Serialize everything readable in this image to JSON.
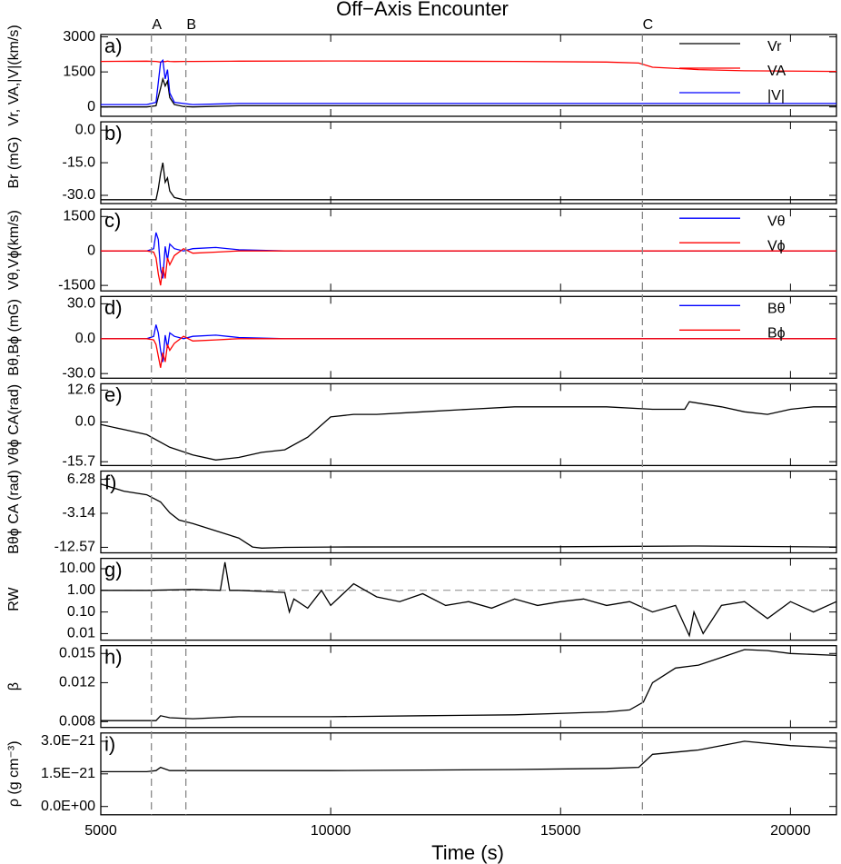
{
  "figure": {
    "title": "Off−Axis Encounter",
    "xlabel": "Time (s)",
    "xlim": [
      5000,
      21000
    ],
    "xticks": [
      5000,
      10000,
      15000,
      20000
    ],
    "markers": [
      {
        "label": "A",
        "x": 6100
      },
      {
        "label": "B",
        "x": 6850
      },
      {
        "label": "C",
        "x": 16780
      }
    ]
  },
  "chart_data": [
    {
      "type": "line",
      "label": "a)",
      "ylabel": "Vr, VA,|V|(km/s)",
      "ylim": [
        -400,
        3100
      ],
      "yticks": [
        0,
        1500,
        3000
      ],
      "legend": "upper right",
      "x": [
        5000,
        6000,
        6200,
        6300,
        6350,
        6400,
        6450,
        6500,
        6600,
        6800,
        7000,
        8000,
        10000,
        12000,
        14000,
        16000,
        16700,
        17000,
        18000,
        19000,
        21000
      ],
      "series": [
        {
          "name": "Vr",
          "color": "#000000",
          "values": [
            0,
            0,
            50,
            800,
            1200,
            900,
            1100,
            400,
            100,
            20,
            0,
            50,
            50,
            50,
            50,
            50,
            50,
            50,
            50,
            50,
            50
          ]
        },
        {
          "name": "VA",
          "color": "#ff0000",
          "values": [
            1950,
            1960,
            1950,
            1920,
            1950,
            1940,
            1960,
            1950,
            1940,
            1950,
            1950,
            1960,
            1970,
            1960,
            1950,
            1920,
            1880,
            1700,
            1600,
            1550,
            1520
          ]
        },
        {
          "name": "|V|",
          "color": "#0000ff",
          "values": [
            100,
            100,
            200,
            1900,
            2000,
            1200,
            1600,
            600,
            200,
            150,
            100,
            150,
            150,
            150,
            150,
            150,
            150,
            150,
            150,
            150,
            150
          ]
        }
      ]
    },
    {
      "type": "line",
      "label": "b)",
      "ylabel": "Br (mG)",
      "ylim": [
        -33.8,
        3.8
      ],
      "yticks": [
        {
          "value": 0,
          "label": "0.0"
        },
        {
          "value": -15,
          "label": "-15.0"
        },
        {
          "value": -30,
          "label": "-30.0"
        }
      ],
      "x": [
        5000,
        6000,
        6200,
        6250,
        6300,
        6350,
        6400,
        6450,
        6500,
        6600,
        6800,
        7000,
        21000
      ],
      "series": [
        {
          "color": "#000000",
          "values": [
            -32,
            -32,
            -32,
            -27,
            -20,
            -15,
            -24,
            -22,
            -28,
            -31,
            -32,
            -32,
            -32
          ]
        }
      ]
    },
    {
      "type": "line",
      "label": "c)",
      "ylabel": "Vθ,Vϕ(km/s)",
      "ylim": [
        -1740,
        1820
      ],
      "yticks": [
        1500,
        0,
        -1500
      ],
      "legend": "upper right",
      "x": [
        5000,
        6000,
        6150,
        6200,
        6250,
        6300,
        6350,
        6400,
        6450,
        6500,
        6600,
        6800,
        7000,
        7500,
        8000,
        9000,
        21000
      ],
      "series": [
        {
          "name": "Vθ",
          "color": "#0000ff",
          "values": [
            0,
            0,
            100,
            800,
            500,
            -800,
            -1200,
            200,
            -400,
            300,
            100,
            0,
            100,
            150,
            50,
            0,
            0
          ]
        },
        {
          "name": "Vϕ",
          "color": "#ff0000",
          "values": [
            0,
            0,
            -50,
            -300,
            -1000,
            -1500,
            -700,
            -1200,
            -300,
            -600,
            -200,
            100,
            -100,
            -50,
            0,
            0,
            0
          ]
        }
      ]
    },
    {
      "type": "line",
      "label": "d)",
      "ylabel": "Bθ,Bϕ (mG)",
      "ylim": [
        -34,
        36.3
      ],
      "yticks": [
        {
          "value": 30,
          "label": "30.0"
        },
        {
          "value": 0,
          "label": "0.0"
        },
        {
          "value": -30,
          "label": "-30.0"
        }
      ],
      "legend": "upper right",
      "x": [
        5000,
        6000,
        6150,
        6200,
        6250,
        6300,
        6350,
        6400,
        6450,
        6500,
        6600,
        6800,
        7000,
        7500,
        8000,
        9000,
        21000
      ],
      "series": [
        {
          "name": "Bθ",
          "color": "#0000ff",
          "values": [
            0,
            0,
            2,
            12,
            5,
            -10,
            -20,
            3,
            -8,
            5,
            2,
            0,
            2,
            3,
            1,
            0,
            0
          ]
        },
        {
          "name": "Bϕ",
          "color": "#ff0000",
          "values": [
            0,
            0,
            -1,
            -5,
            -15,
            -25,
            -12,
            -20,
            -5,
            -10,
            -4,
            2,
            -2,
            -1,
            0,
            0,
            0
          ]
        }
      ]
    },
    {
      "type": "line",
      "label": "e)",
      "ylabel": "Vθϕ CA(rad)",
      "ylim": [
        -17.2,
        15.1
      ],
      "yticks": [
        {
          "value": 12.6,
          "label": "12.6"
        },
        {
          "value": 0,
          "label": "0.0"
        },
        {
          "value": -15.7,
          "label": "-15.7"
        }
      ],
      "x": [
        5000,
        5500,
        6000,
        6500,
        7000,
        7500,
        8000,
        8500,
        9000,
        9500,
        10000,
        10500,
        11000,
        12000,
        13000,
        14000,
        15000,
        16000,
        17000,
        17700,
        17800,
        18500,
        19000,
        19500,
        20000,
        20500,
        21000
      ],
      "series": [
        {
          "color": "#000000",
          "values": [
            -1,
            -3,
            -5,
            -10,
            -13,
            -15,
            -14,
            -12,
            -11,
            -6,
            2,
            3,
            3,
            4,
            5,
            6,
            6,
            6,
            5,
            5,
            8,
            6,
            4,
            3,
            5,
            6,
            6
          ]
        }
      ]
    },
    {
      "type": "line",
      "label": "f)",
      "ylabel": "Bθϕ CA (rad)",
      "ylim": [
        -14.1,
        8.57
      ],
      "yticks": [
        6.28,
        -3.14,
        -12.57
      ],
      "x": [
        5000,
        5500,
        6000,
        6300,
        6500,
        6700,
        7000,
        7500,
        8000,
        8300,
        8500,
        9000,
        10000,
        15000,
        18000,
        21000
      ],
      "series": [
        {
          "color": "#000000",
          "values": [
            5,
            3,
            2,
            0,
            -3,
            -5,
            -6,
            -8,
            -10,
            -12.5,
            -12.8,
            -12.6,
            -12.5,
            -12.4,
            -12.2,
            -12.5
          ]
        }
      ]
    },
    {
      "type": "line",
      "label": "g)",
      "ylabel": "RW",
      "log_scale": true,
      "ylim": [
        0.005,
        30
      ],
      "hline": 1,
      "yticks": [
        {
          "value": 10,
          "label": "10.00"
        },
        {
          "value": 1,
          "label": "1.00"
        },
        {
          "value": 0.1,
          "label": "0.10"
        },
        {
          "value": 0.01,
          "label": "0.01"
        }
      ],
      "x": [
        5000,
        6000,
        7000,
        7600,
        7700,
        7800,
        8000,
        8500,
        9000,
        9100,
        9200,
        9500,
        9800,
        10000,
        10500,
        11000,
        11500,
        12000,
        12500,
        13000,
        13500,
        14000,
        14500,
        15000,
        15500,
        16000,
        16500,
        17000,
        17500,
        17800,
        17900,
        18100,
        18500,
        19000,
        19500,
        20000,
        20500,
        21000
      ],
      "series": [
        {
          "color": "#000000",
          "values": [
            1,
            1,
            1.1,
            1,
            20,
            1,
            1,
            0.9,
            0.8,
            0.1,
            0.4,
            0.15,
            1,
            0.2,
            2,
            0.5,
            0.3,
            0.7,
            0.2,
            0.3,
            0.15,
            0.4,
            0.2,
            0.3,
            0.4,
            0.2,
            0.3,
            0.1,
            0.2,
            0.008,
            0.1,
            0.01,
            0.2,
            0.3,
            0.05,
            0.3,
            0.1,
            0.3
          ]
        }
      ]
    },
    {
      "type": "line",
      "label": "h)",
      "ylabel": "β",
      "ylim": [
        0.0074,
        0.0158
      ],
      "yticks": [
        0.008,
        0.012,
        0.015
      ],
      "x": [
        5000,
        6000,
        6200,
        6300,
        6500,
        7000,
        8000,
        10000,
        12000,
        14000,
        16000,
        16500,
        16800,
        17000,
        17500,
        18000,
        18500,
        19000,
        19500,
        20000,
        21000
      ],
      "series": [
        {
          "color": "#000000",
          "values": [
            0.0081,
            0.0081,
            0.0081,
            0.0086,
            0.0084,
            0.0083,
            0.0085,
            0.0085,
            0.0086,
            0.0087,
            0.009,
            0.0092,
            0.01,
            0.012,
            0.0135,
            0.0138,
            0.0146,
            0.0154,
            0.0153,
            0.015,
            0.0148
          ]
        }
      ]
    },
    {
      "type": "line",
      "label": "i)",
      "ylabel": "ρ (g cm⁻³)",
      "ylim": [
        -3.8e-22,
        3.38e-21
      ],
      "yticks": [
        {
          "value": 3e-21,
          "label": "3.0E−21"
        },
        {
          "value": 1.5e-21,
          "label": "1.5E−21"
        },
        {
          "value": 0,
          "label": "0.0E+00"
        }
      ],
      "x": [
        5000,
        6000,
        6200,
        6300,
        6500,
        7000,
        10000,
        14000,
        16000,
        16700,
        17000,
        18000,
        19000,
        20000,
        21000
      ],
      "series": [
        {
          "color": "#000000",
          "values": [
            1.6e-21,
            1.6e-21,
            1.65e-21,
            1.8e-21,
            1.65e-21,
            1.65e-21,
            1.65e-21,
            1.7e-21,
            1.75e-21,
            1.8e-21,
            2.4e-21,
            2.6e-21,
            3e-21,
            2.8e-21,
            2.7e-21
          ]
        }
      ]
    }
  ]
}
